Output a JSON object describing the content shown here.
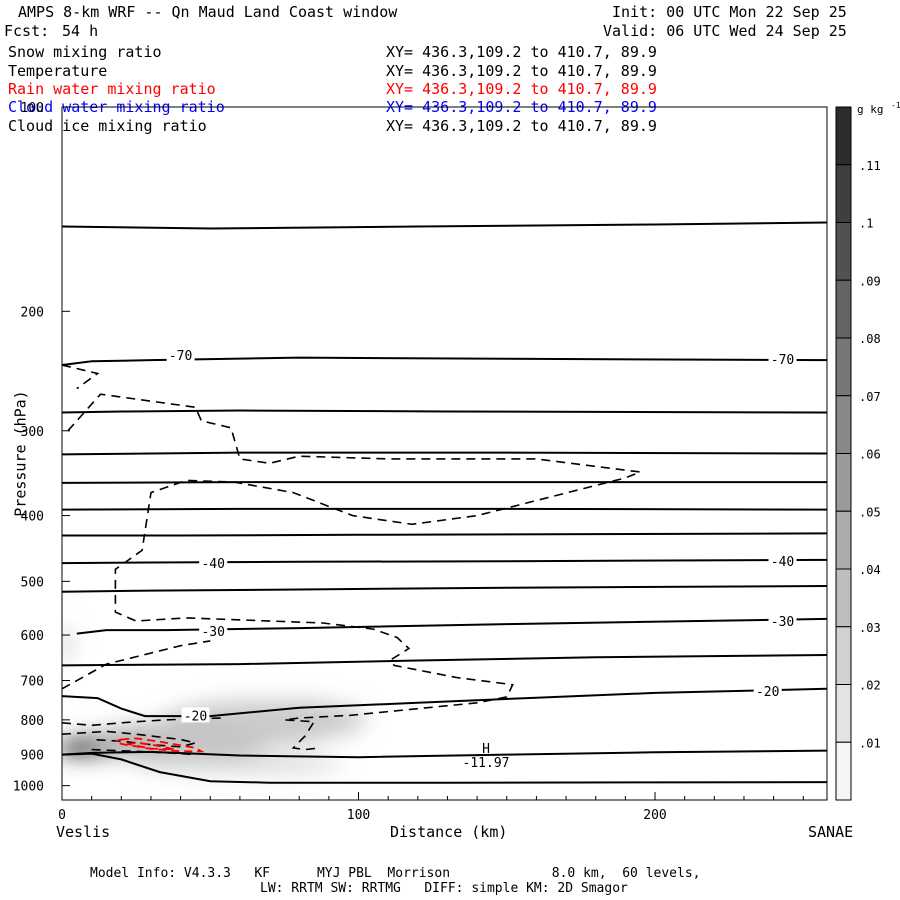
{
  "header": {
    "title": "AMPS 8-km WRF -- Qn Maud Land Coast window",
    "init": "Init: 00 UTC Mon 22 Sep 25",
    "fcst_label": "Fcst:",
    "fcst_value": "54 h",
    "valid": "Valid: 06 UTC Wed 24 Sep 25",
    "fields": [
      {
        "label": "Snow mixing ratio",
        "xy": "XY= 436.3,109.2 to 410.7, 89.9",
        "color": "#000000"
      },
      {
        "label": "Temperature",
        "xy": "XY= 436.3,109.2 to 410.7, 89.9",
        "color": "#000000"
      },
      {
        "label": "Rain water mixing ratio",
        "xy": "XY= 436.3,109.2 to 410.7, 89.9",
        "color": "#ff0000"
      },
      {
        "label": "Cloud water mixing ratio",
        "xy": "XY= 436.3,109.2 to 410.7, 89.9",
        "color": "#0000ff"
      },
      {
        "label": "Cloud ice mixing ratio",
        "xy": "XY= 436.3,109.2 to 410.7, 89.9",
        "color": "#000000"
      }
    ]
  },
  "footer": {
    "line1": "Model Info: V4.3.3   KF      MYJ PBL  Morrison             8.0 km,  60 levels,",
    "line2": "LW: RRTM SW: RRTMG   DIFF: simple KM: 2D Smagor"
  },
  "chart_data": {
    "type": "contour",
    "xlabel": "Distance (km)",
    "ylabel": "Pressure (hPa)",
    "xlim": [
      0,
      258
    ],
    "ylim": [
      1050,
      100
    ],
    "y_scale": "log",
    "x_ticks": [
      0,
      100,
      200
    ],
    "y_ticks": [
      200,
      300,
      400,
      500,
      600,
      700,
      800,
      900,
      1000
    ],
    "y_tick_top": "100",
    "endpoints": {
      "left": "Veslis",
      "right": "SANAE"
    },
    "colorbar": {
      "unit_label": "g kg",
      "unit_exp": "-1",
      "ticks": [
        ".01",
        ".02",
        ".03",
        ".04",
        ".05",
        ".06",
        ".07",
        ".08",
        ".09",
        ".1",
        ".11"
      ],
      "range": [
        0.005,
        0.125
      ]
    },
    "temperature_labels": [
      {
        "text": "-70",
        "x": 40,
        "p": 232
      },
      {
        "text": "-70",
        "x": 243,
        "p": 235
      },
      {
        "text": "-40",
        "x": 51,
        "p": 470
      },
      {
        "text": "-40",
        "x": 243,
        "p": 467
      },
      {
        "text": "-30",
        "x": 51,
        "p": 592
      },
      {
        "text": "-30",
        "x": 243,
        "p": 572
      },
      {
        "text": "-20",
        "x": 45,
        "p": 788
      },
      {
        "text": "-20",
        "x": 238,
        "p": 725
      }
    ],
    "temperature_isotherms": [
      [
        [
          0,
          150
        ],
        [
          50,
          151
        ],
        [
          120,
          150
        ],
        [
          200,
          149
        ],
        [
          258,
          148
        ]
      ],
      [
        [
          0,
          240
        ],
        [
          10,
          237
        ],
        [
          30,
          236
        ],
        [
          80,
          234
        ],
        [
          150,
          235
        ],
        [
          258,
          236
        ]
      ],
      [
        [
          0,
          282
        ],
        [
          20,
          281
        ],
        [
          60,
          280
        ],
        [
          130,
          281
        ],
        [
          258,
          282
        ]
      ],
      [
        [
          0,
          325
        ],
        [
          60,
          323
        ],
        [
          150,
          323
        ],
        [
          258,
          324
        ]
      ],
      [
        [
          0,
          358
        ],
        [
          60,
          357
        ],
        [
          150,
          357
        ],
        [
          258,
          357
        ]
      ],
      [
        [
          0,
          392
        ],
        [
          60,
          391
        ],
        [
          150,
          391
        ],
        [
          258,
          392
        ]
      ],
      [
        [
          0,
          428
        ],
        [
          40,
          428
        ],
        [
          100,
          427
        ],
        [
          258,
          425
        ]
      ],
      [
        [
          0,
          470
        ],
        [
          30,
          469
        ],
        [
          80,
          468
        ],
        [
          150,
          467
        ],
        [
          258,
          465
        ]
      ],
      [
        [
          0,
          518
        ],
        [
          30,
          516
        ],
        [
          80,
          514
        ],
        [
          150,
          511
        ],
        [
          258,
          508
        ]
      ],
      [
        [
          5,
          597
        ],
        [
          15,
          590
        ],
        [
          35,
          590
        ],
        [
          80,
          586
        ],
        [
          150,
          578
        ],
        [
          258,
          568
        ]
      ],
      [
        [
          0,
          665
        ],
        [
          20,
          664
        ],
        [
          60,
          662
        ],
        [
          120,
          654
        ],
        [
          180,
          647
        ],
        [
          258,
          642
        ]
      ],
      [
        [
          0,
          738
        ],
        [
          12,
          743
        ],
        [
          20,
          770
        ],
        [
          28,
          790
        ],
        [
          50,
          790
        ],
        [
          80,
          768
        ],
        [
          120,
          755
        ],
        [
          160,
          742
        ],
        [
          200,
          730
        ],
        [
          258,
          720
        ]
      ],
      [
        [
          0,
          900
        ],
        [
          10,
          895
        ],
        [
          30,
          892
        ],
        [
          60,
          903
        ],
        [
          100,
          908
        ],
        [
          150,
          900
        ],
        [
          200,
          893
        ],
        [
          258,
          888
        ]
      ],
      [
        [
          0,
          900
        ],
        [
          10,
          897
        ],
        [
          20,
          915
        ],
        [
          33,
          955
        ],
        [
          50,
          985
        ],
        [
          70,
          990
        ],
        [
          130,
          990
        ],
        [
          200,
          989
        ],
        [
          258,
          988
        ]
      ]
    ],
    "cloud_ice_contours": [
      [
        [
          2,
          300
        ],
        [
          13,
          265
        ],
        [
          45,
          277
        ],
        [
          47,
          290
        ],
        [
          57,
          297
        ],
        [
          60,
          330
        ],
        [
          70,
          335
        ],
        [
          80,
          327
        ],
        [
          110,
          330
        ],
        [
          160,
          330
        ],
        [
          195,
          345
        ],
        [
          190,
          352
        ],
        [
          140,
          400
        ],
        [
          118,
          412
        ],
        [
          98,
          400
        ],
        [
          78,
          370
        ],
        [
          58,
          357
        ],
        [
          42,
          355
        ],
        [
          30,
          370
        ],
        [
          27,
          450
        ],
        [
          18,
          480
        ],
        [
          18,
          555
        ],
        [
          25,
          572
        ],
        [
          42,
          566
        ],
        [
          88,
          576
        ],
        [
          105,
          588
        ],
        [
          113,
          605
        ],
        [
          117,
          628
        ],
        [
          111,
          652
        ],
        [
          112,
          665
        ],
        [
          133,
          693
        ],
        [
          152,
          710
        ],
        [
          150,
          740
        ],
        [
          140,
          755
        ],
        [
          97,
          788
        ],
        [
          80,
          795
        ],
        [
          75,
          800
        ],
        [
          85,
          805
        ],
        [
          82,
          845
        ],
        [
          78,
          880
        ],
        [
          82,
          885
        ],
        [
          87,
          880
        ]
      ],
      [
        [
          0,
          720
        ],
        [
          15,
          662
        ],
        [
          40,
          622
        ],
        [
          50,
          612
        ]
      ],
      [
        [
          0,
          808
        ],
        [
          10,
          815
        ],
        [
          25,
          805
        ],
        [
          35,
          800
        ],
        [
          45,
          797
        ],
        [
          55,
          795
        ]
      ],
      [
        [
          0,
          840
        ],
        [
          15,
          832
        ],
        [
          25,
          840
        ],
        [
          40,
          855
        ],
        [
          45,
          865
        ],
        [
          40,
          877
        ],
        [
          30,
          870
        ],
        [
          20,
          860
        ],
        [
          10,
          855
        ]
      ],
      [
        [
          10,
          885
        ],
        [
          25,
          890
        ],
        [
          40,
          897
        ],
        [
          45,
          900
        ]
      ],
      [
        [
          0,
          240
        ],
        [
          12,
          247
        ],
        [
          5,
          260
        ]
      ]
    ],
    "rain_water_contours": [
      [
        [
          20,
          855
        ],
        [
          25,
          852
        ],
        [
          32,
          860
        ],
        [
          40,
          872
        ],
        [
          45,
          880
        ],
        [
          47,
          890
        ],
        [
          40,
          890
        ],
        [
          30,
          883
        ],
        [
          20,
          868
        ],
        [
          18,
          860
        ]
      ],
      [
        [
          22,
          868
        ],
        [
          26,
          865
        ],
        [
          32,
          873
        ],
        [
          38,
          884
        ],
        [
          30,
          882
        ]
      ]
    ],
    "snow_blobs": [
      {
        "x": 8,
        "p": 880,
        "rx": 10,
        "rp": 60,
        "value": 0.12
      },
      {
        "x": 18,
        "p": 870,
        "rx": 16,
        "rp": 75,
        "value": 0.09
      },
      {
        "x": 40,
        "p": 860,
        "rx": 30,
        "rp": 120,
        "value": 0.04
      },
      {
        "x": 65,
        "p": 810,
        "rx": 32,
        "rp": 130,
        "value": 0.035
      },
      {
        "x": 78,
        "p": 800,
        "rx": 25,
        "rp": 110,
        "value": 0.03
      },
      {
        "x": 60,
        "p": 930,
        "rx": 35,
        "rp": 60,
        "value": 0.025
      },
      {
        "x": 1,
        "p": 620,
        "rx": 3,
        "rp": 80,
        "value": 0.02
      }
    ],
    "high_label": {
      "letter": "H",
      "value": "-11.97",
      "x": 143,
      "p": 958
    }
  }
}
